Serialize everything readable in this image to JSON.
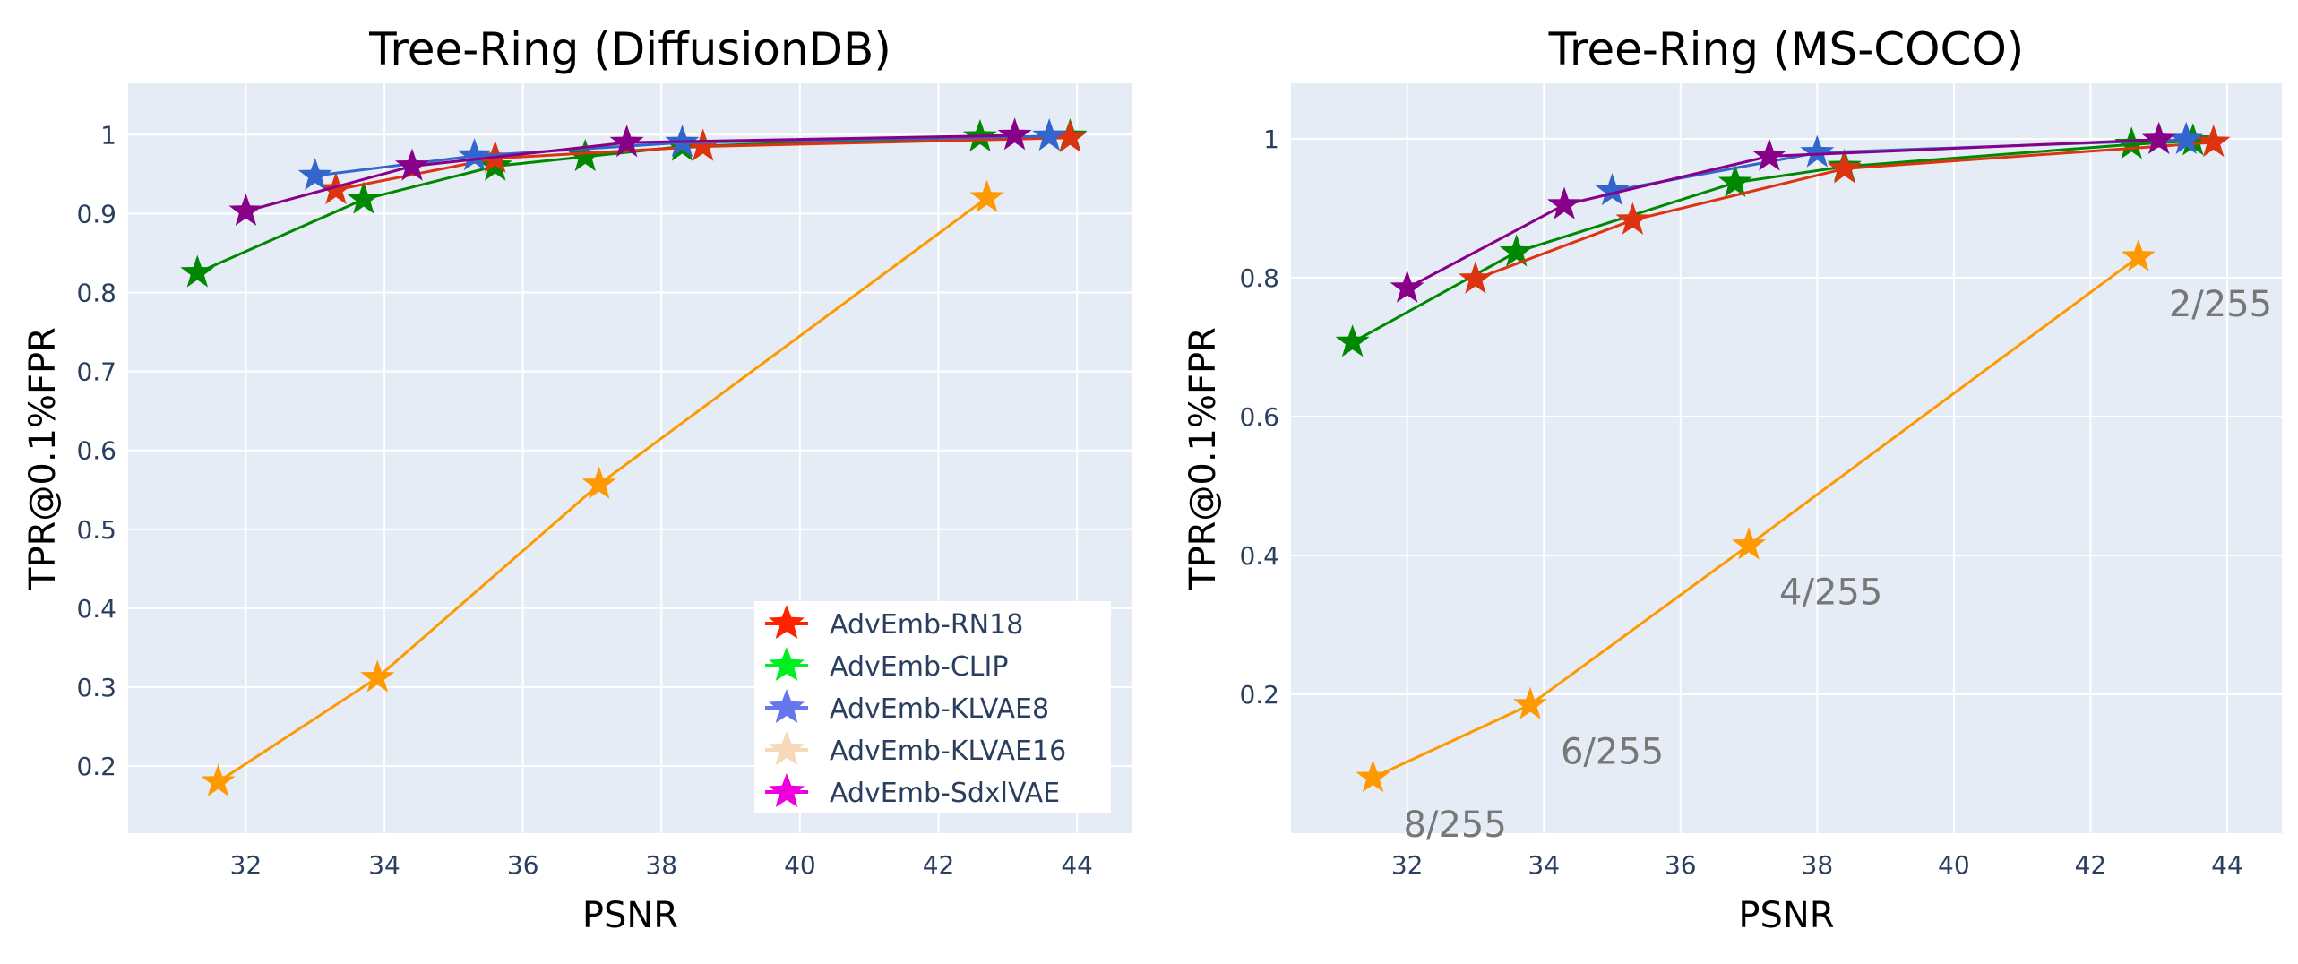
{
  "chart_data": [
    {
      "type": "line",
      "title": "Tree-Ring (DiffusionDB)",
      "xlabel": "PSNR",
      "ylabel": "TPR@0.1%FPR",
      "xlim": [
        30.3,
        44.8
      ],
      "ylim": [
        0.115,
        1.065
      ],
      "xticks": [
        32,
        34,
        36,
        38,
        40,
        42,
        44
      ],
      "yticks": [
        0.2,
        0.3,
        0.4,
        0.5,
        0.6,
        0.7,
        0.8,
        0.9,
        1
      ],
      "grid": true,
      "legend_position": "bottom-right",
      "annotations": [],
      "series": [
        {
          "name": "",
          "color": "#ff9900",
          "x": [
            31.6,
            33.9,
            37.1,
            42.7
          ],
          "y": [
            0.18,
            0.312,
            0.557,
            0.92
          ]
        },
        {
          "name": "",
          "color": "#008800",
          "x": [
            31.3,
            33.7,
            35.6,
            36.9,
            38.3,
            42.6,
            43.9
          ],
          "y": [
            0.825,
            0.918,
            0.96,
            0.972,
            0.985,
            0.997,
            0.998
          ]
        },
        {
          "name": "",
          "color": "#dd3311",
          "x": [
            33.3,
            35.6,
            38.6,
            43.9
          ],
          "y": [
            0.93,
            0.97,
            0.985,
            0.996
          ]
        },
        {
          "name": "",
          "color": "#3366cc",
          "x": [
            33.0,
            35.3,
            38.3,
            43.6
          ],
          "y": [
            0.948,
            0.973,
            0.99,
            0.998
          ]
        },
        {
          "name": "",
          "color": "#880088",
          "x": [
            32.0,
            34.4,
            37.5,
            43.1
          ],
          "y": [
            0.903,
            0.96,
            0.99,
            0.999
          ]
        }
      ],
      "legend": [
        {
          "label": "AdvEmb-RN18",
          "color": "#ff2200"
        },
        {
          "label": "AdvEmb-CLIP",
          "color": "#00ee22"
        },
        {
          "label": "AdvEmb-KLVAE8",
          "color": "#6677ee"
        },
        {
          "label": "AdvEmb-KLVAE16",
          "color": "#f7d9b8"
        },
        {
          "label": "AdvEmb-SdxlVAE",
          "color": "#ee00dd"
        }
      ]
    },
    {
      "type": "line",
      "title": "Tree-Ring (MS-COCO)",
      "xlabel": "PSNR",
      "ylabel": "TPR@0.1%FPR",
      "xlim": [
        30.3,
        44.8
      ],
      "ylim": [
        0.0,
        1.08
      ],
      "xticks": [
        32,
        34,
        36,
        38,
        40,
        42,
        44
      ],
      "yticks": [
        0.2,
        0.4,
        0.6,
        0.8,
        1
      ],
      "grid": true,
      "legend_position": "",
      "annotations": [
        {
          "text": "8/255",
          "x": 31.5,
          "y": 0.08
        },
        {
          "text": "6/255",
          "x": 33.8,
          "y": 0.185
        },
        {
          "text": "4/255",
          "x": 37.0,
          "y": 0.415
        },
        {
          "text": "2/255",
          "x": 42.7,
          "y": 0.83
        }
      ],
      "series": [
        {
          "name": "",
          "color": "#ff9900",
          "x": [
            31.5,
            33.8,
            37.0,
            42.7
          ],
          "y": [
            0.08,
            0.185,
            0.415,
            0.83
          ]
        },
        {
          "name": "",
          "color": "#008800",
          "x": [
            31.2,
            33.6,
            36.8,
            38.4,
            42.6,
            43.5
          ],
          "y": [
            0.707,
            0.837,
            0.937,
            0.96,
            0.992,
            0.997
          ]
        },
        {
          "name": "",
          "color": "#dd3311",
          "x": [
            33.0,
            35.3,
            38.4,
            43.8
          ],
          "y": [
            0.798,
            0.883,
            0.957,
            0.995
          ]
        },
        {
          "name": "",
          "color": "#3366cc",
          "x": [
            35.0,
            38.0,
            43.4
          ],
          "y": [
            0.925,
            0.98,
            0.999
          ]
        },
        {
          "name": "",
          "color": "#880088",
          "x": [
            32.0,
            34.3,
            37.3,
            43.0
          ],
          "y": [
            0.785,
            0.905,
            0.975,
            0.999
          ]
        }
      ]
    }
  ]
}
